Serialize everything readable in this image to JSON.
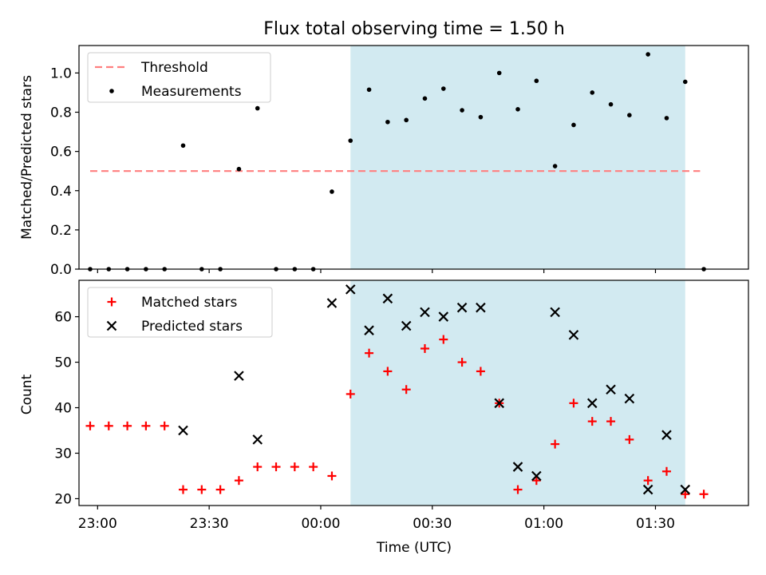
{
  "chart_data": [
    {
      "type": "scatter",
      "title": "Flux total observing time = 1.50 h",
      "xlabel": "",
      "ylabel": "Matched/Predicted stars",
      "xlim": [
        "22:55",
        "01:55"
      ],
      "ylim": [
        0,
        1.14
      ],
      "yticks": [
        0.0,
        0.2,
        0.4,
        0.6,
        0.8,
        1.0
      ],
      "yticklabels": [
        "0.0",
        "0.2",
        "0.4",
        "0.6",
        "0.8",
        "1.0"
      ],
      "shaded_interval": [
        "00:08",
        "01:38"
      ],
      "shaded_color": "#add8e6",
      "legend_position": "upper-left",
      "series": [
        {
          "name": "Threshold",
          "kind": "dashed-line",
          "color": "#ff7f7f",
          "x": [
            "22:58",
            "01:42"
          ],
          "y": [
            0.5,
            0.5
          ]
        },
        {
          "name": "Measurements",
          "kind": "dot",
          "color": "#000000",
          "x": [
            "22:58",
            "23:03",
            "23:08",
            "23:13",
            "23:18",
            "23:23",
            "23:28",
            "23:33",
            "23:38",
            "23:43",
            "23:48",
            "23:53",
            "23:58",
            "00:03",
            "00:08",
            "00:13",
            "00:18",
            "00:23",
            "00:28",
            "00:33",
            "00:38",
            "00:43",
            "00:48",
            "00:53",
            "00:58",
            "01:03",
            "01:08",
            "01:13",
            "01:18",
            "01:23",
            "01:28",
            "01:33",
            "01:38",
            "01:43"
          ],
          "y": [
            0.0,
            0.0,
            0.0,
            0.0,
            0.0,
            0.63,
            0.0,
            0.0,
            0.51,
            0.82,
            0.0,
            0.0,
            0.0,
            0.395,
            0.655,
            0.915,
            0.75,
            0.76,
            0.87,
            0.92,
            0.81,
            0.775,
            1.0,
            0.815,
            0.96,
            0.525,
            0.735,
            0.9,
            0.84,
            0.785,
            1.095,
            0.77,
            0.955,
            0.0
          ]
        }
      ]
    },
    {
      "type": "scatter",
      "title": "",
      "xlabel": "Time (UTC)",
      "ylabel": "Count",
      "xlim": [
        "22:55",
        "01:55"
      ],
      "ylim": [
        18.5,
        68
      ],
      "yticks": [
        20,
        30,
        40,
        50,
        60
      ],
      "yticklabels": [
        "20",
        "30",
        "40",
        "50",
        "60"
      ],
      "xticks": [
        "23:00",
        "23:30",
        "00:00",
        "00:30",
        "01:00",
        "01:30"
      ],
      "xticklabels": [
        "23:00",
        "23:30",
        "00:00",
        "00:30",
        "01:00",
        "01:30"
      ],
      "shaded_interval": [
        "00:08",
        "01:38"
      ],
      "shaded_color": "#add8e6",
      "legend_position": "upper-left",
      "series": [
        {
          "name": "Matched stars",
          "kind": "plus",
          "color": "#ff0000",
          "x": [
            "22:58",
            "23:03",
            "23:08",
            "23:13",
            "23:18",
            "23:23",
            "23:28",
            "23:33",
            "23:38",
            "23:43",
            "23:48",
            "23:53",
            "23:58",
            "00:03",
            "00:08",
            "00:13",
            "00:18",
            "00:23",
            "00:28",
            "00:33",
            "00:38",
            "00:43",
            "00:48",
            "00:53",
            "00:58",
            "01:03",
            "01:08",
            "01:13",
            "01:18",
            "01:23",
            "01:28",
            "01:33",
            "01:38",
            "01:43"
          ],
          "y": [
            36,
            36,
            36,
            36,
            36,
            22,
            22,
            22,
            24,
            27,
            27,
            27,
            27,
            25,
            43,
            52,
            48,
            44,
            53,
            55,
            50,
            48,
            41,
            22,
            24,
            32,
            41,
            37,
            37,
            33,
            24,
            26,
            21,
            21
          ]
        },
        {
          "name": "Predicted stars",
          "kind": "x",
          "color": "#000000",
          "x": [
            "23:23",
            "23:38",
            "23:43",
            "00:03",
            "00:08",
            "00:13",
            "00:18",
            "00:23",
            "00:28",
            "00:33",
            "00:38",
            "00:43",
            "00:48",
            "00:53",
            "00:58",
            "01:03",
            "01:08",
            "01:13",
            "01:18",
            "01:23",
            "01:28",
            "01:33",
            "01:38"
          ],
          "y": [
            35,
            47,
            33,
            63,
            66,
            57,
            64,
            58,
            61,
            60,
            62,
            62,
            41,
            27,
            25,
            61,
            56,
            41,
            44,
            42,
            22,
            34,
            22
          ]
        }
      ]
    }
  ]
}
